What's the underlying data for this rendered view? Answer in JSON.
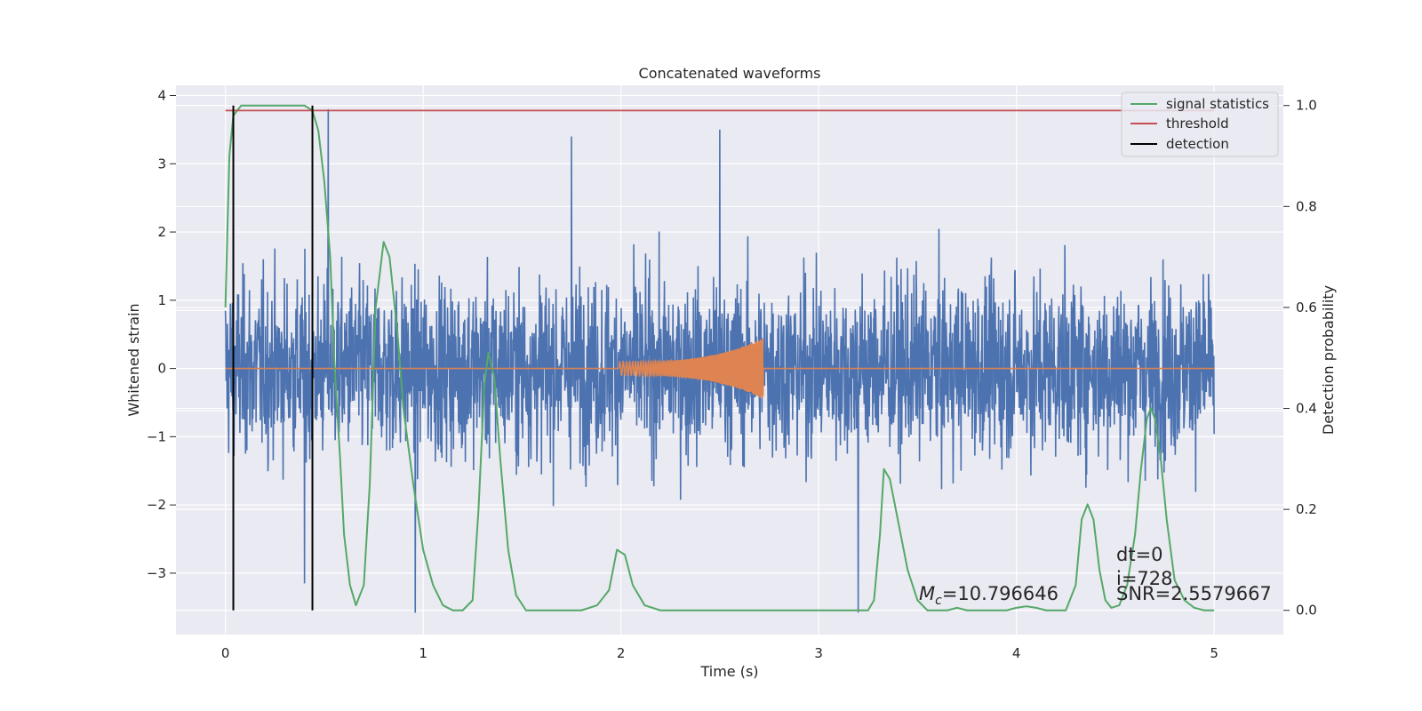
{
  "chart_data": {
    "type": "line",
    "title": "Concatenated waveforms",
    "xlabel": "Time (s)",
    "ylabel": "Whitened strain",
    "y2label": "Detection probability",
    "xlim": [
      -0.25,
      5.35
    ],
    "ylim": [
      -3.9,
      4.15
    ],
    "y2lim": [
      -0.048,
      1.04
    ],
    "x_ticks": [
      0,
      1,
      2,
      3,
      4,
      5
    ],
    "x_tick_labels": [
      "0",
      "1",
      "2",
      "3",
      "4",
      "5"
    ],
    "y_ticks": [
      -3,
      -2,
      -1,
      0,
      1,
      2,
      3,
      4
    ],
    "y_tick_labels": [
      "−3",
      "−2",
      "−1",
      "0",
      "1",
      "2",
      "3",
      "4"
    ],
    "y2_ticks": [
      0.0,
      0.2,
      0.4,
      0.6,
      0.8,
      1.0
    ],
    "y2_tick_labels": [
      "0.0",
      "0.2",
      "0.4",
      "0.6",
      "0.8",
      "1.0"
    ],
    "grid": true,
    "legend_position": "top-right",
    "legend": [
      "signal statistics",
      "threshold",
      "detection"
    ],
    "series": [
      {
        "name": "",
        "axis": "left",
        "color": "#4c72b0",
        "kind": "noise",
        "x_range": [
          0,
          5
        ],
        "envelope": [
          -2.5,
          2.6
        ],
        "extremes": [
          [
            0.52,
            3.8
          ],
          [
            1.75,
            3.4
          ],
          [
            2.5,
            3.5
          ],
          [
            0.96,
            -3.58
          ],
          [
            3.2,
            -3.58
          ],
          [
            0.4,
            -3.15
          ]
        ]
      },
      {
        "name": "",
        "axis": "left",
        "color": "#dd8452",
        "kind": "chirp",
        "baseline": 0,
        "chirp_start": 1.99,
        "chirp_end": 2.72,
        "chirp_amplitude_start": 0.1,
        "chirp_amplitude_end": 0.45
      },
      {
        "name": "signal statistics",
        "axis": "right",
        "color": "#55a868",
        "x": [
          0.0,
          0.02,
          0.04,
          0.08,
          0.15,
          0.3,
          0.4,
          0.44,
          0.47,
          0.5,
          0.53,
          0.55,
          0.58,
          0.6,
          0.63,
          0.66,
          0.7,
          0.73,
          0.76,
          0.8,
          0.83,
          0.87,
          0.9,
          0.95,
          1.0,
          1.05,
          1.1,
          1.15,
          1.2,
          1.25,
          1.28,
          1.31,
          1.33,
          1.36,
          1.39,
          1.43,
          1.47,
          1.52,
          1.6,
          1.7,
          1.8,
          1.88,
          1.94,
          1.98,
          2.02,
          2.06,
          2.12,
          2.2,
          2.5,
          3.0,
          3.2,
          3.25,
          3.28,
          3.31,
          3.33,
          3.36,
          3.4,
          3.45,
          3.5,
          3.55,
          3.65,
          3.7,
          3.75,
          3.85,
          3.95,
          4.0,
          4.05,
          4.1,
          4.15,
          4.25,
          4.3,
          4.33,
          4.36,
          4.39,
          4.42,
          4.45,
          4.48,
          4.52,
          4.56,
          4.6,
          4.63,
          4.66,
          4.68,
          4.7,
          4.73,
          4.76,
          4.8,
          4.85,
          4.9,
          4.95,
          5.0
        ],
        "y": [
          0.6,
          0.9,
          0.98,
          1.0,
          1.0,
          1.0,
          1.0,
          0.99,
          0.95,
          0.85,
          0.7,
          0.5,
          0.3,
          0.15,
          0.05,
          0.01,
          0.05,
          0.25,
          0.6,
          0.73,
          0.7,
          0.55,
          0.4,
          0.25,
          0.12,
          0.05,
          0.01,
          0.0,
          0.0,
          0.02,
          0.2,
          0.45,
          0.51,
          0.46,
          0.3,
          0.12,
          0.03,
          0.0,
          0.0,
          0.0,
          0.0,
          0.01,
          0.04,
          0.12,
          0.11,
          0.05,
          0.01,
          0.0,
          0.0,
          0.0,
          0.0,
          0.0,
          0.02,
          0.15,
          0.28,
          0.26,
          0.18,
          0.08,
          0.02,
          0.0,
          0.0,
          0.005,
          0.0,
          0.0,
          0.0,
          0.005,
          0.008,
          0.005,
          0.0,
          0.0,
          0.05,
          0.18,
          0.21,
          0.18,
          0.08,
          0.02,
          0.005,
          0.01,
          0.05,
          0.15,
          0.28,
          0.38,
          0.4,
          0.38,
          0.3,
          0.18,
          0.06,
          0.02,
          0.005,
          0.0,
          0.0
        ]
      },
      {
        "name": "threshold",
        "axis": "right",
        "color": "#c44e52",
        "x": [
          0,
          5
        ],
        "y": [
          0.99,
          0.99
        ]
      },
      {
        "name": "detection",
        "axis": "right",
        "color": "#000000",
        "kind": "vlines",
        "x": [
          0.04,
          0.44
        ],
        "y": [
          0.0,
          1.0
        ]
      }
    ],
    "hlines_left": [
      0.85,
      -0.62
    ],
    "annotations": [
      {
        "text": "=10.796646",
        "prefix_var": "M",
        "prefix_sub": "c"
      },
      {
        "text": "dt=0"
      },
      {
        "text": "i=728"
      },
      {
        "text": "SNR=2.5579667"
      }
    ]
  }
}
